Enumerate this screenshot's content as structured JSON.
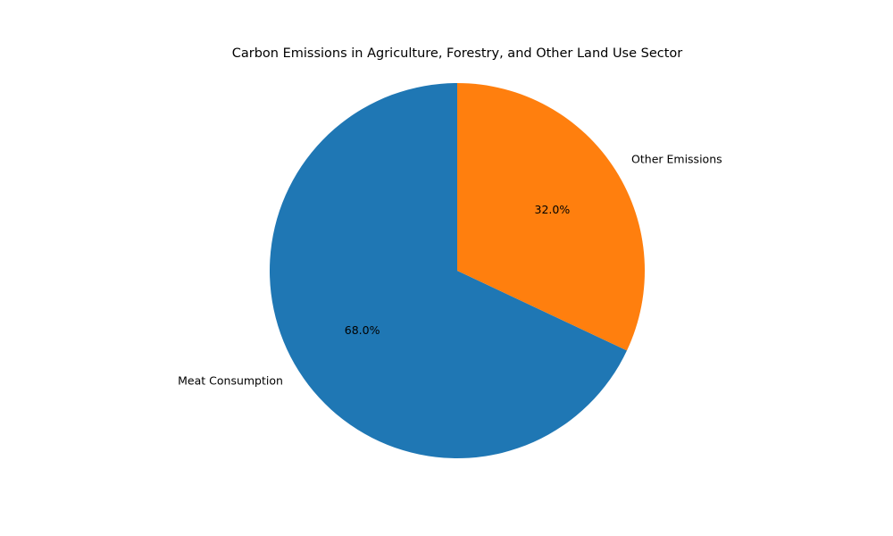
{
  "chart_data": {
    "type": "pie",
    "title": "Carbon Emissions in Agriculture, Forestry, and Other Land Use Sector",
    "slices": [
      {
        "label": "Meat Consumption",
        "value": 68.0,
        "pct_label": "68.0%",
        "color": "#1f77b4"
      },
      {
        "label": "Other Emissions",
        "value": 32.0,
        "pct_label": "32.0%",
        "color": "#ff7f0e"
      }
    ],
    "start_angle_deg": 90,
    "direction": "counterclockwise",
    "legend": "none"
  }
}
